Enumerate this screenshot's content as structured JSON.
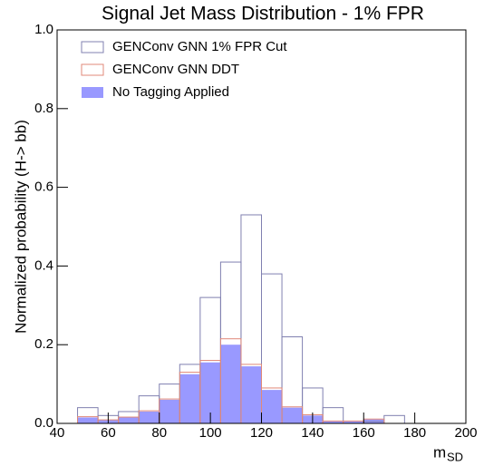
{
  "chart_data": {
    "type": "histogram",
    "title": "Signal Jet Mass Distribution - 1% FPR",
    "x_label": "m",
    "x_label_sub": "SD",
    "y_label": "Normalized probability (H-> bb)",
    "bins": [
      40,
      48,
      56,
      64,
      72,
      80,
      88,
      96,
      104,
      112,
      120,
      128,
      136,
      144,
      152,
      160,
      168,
      176,
      184,
      192,
      200
    ],
    "series": [
      {
        "name": "GENConv GNN 1% FPR Cut",
        "color": "#8080b0",
        "style": "outline",
        "values": [
          0,
          0.04,
          0.02,
          0.03,
          0.07,
          0.1,
          0.15,
          0.32,
          0.41,
          0.53,
          0.38,
          0.22,
          0.09,
          0.04,
          0,
          0.005,
          0.02,
          0,
          0,
          0
        ]
      },
      {
        "name": "GENConv GNN DDT",
        "color": "#e08878",
        "style": "outline",
        "values": [
          0,
          0.017,
          0.009,
          0.016,
          0.032,
          0.062,
          0.13,
          0.16,
          0.215,
          0.15,
          0.09,
          0.042,
          0.022,
          0.006,
          0.006,
          0.011,
          0,
          0,
          0,
          0
        ]
      },
      {
        "name": "No Tagging Applied",
        "color": "#9999ff",
        "style": "filled",
        "values": [
          0,
          0.015,
          0.008,
          0.015,
          0.03,
          0.06,
          0.125,
          0.155,
          0.2,
          0.145,
          0.085,
          0.04,
          0.02,
          0.005,
          0.005,
          0.01,
          0,
          0,
          0,
          0
        ]
      }
    ],
    "xlim": [
      40,
      200
    ],
    "xticks": [
      40,
      60,
      80,
      100,
      120,
      140,
      160,
      180,
      200
    ],
    "ylim": [
      0,
      1
    ],
    "yticks": [
      {
        "value": 0,
        "label": "0.0"
      },
      0.2,
      0.4,
      0.6,
      0.8,
      {
        "value": 1,
        "label": "1.0"
      }
    ],
    "legend": "upper-left"
  }
}
